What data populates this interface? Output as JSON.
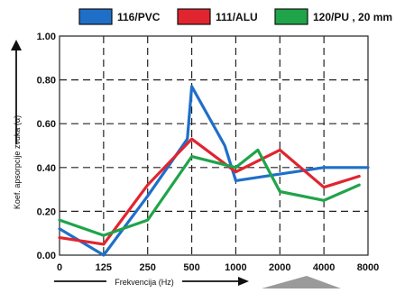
{
  "chart_data": {
    "type": "line",
    "title": "",
    "xlabel": "Frekvencija (Hz)",
    "ylabel": "Koef. apsorpcije zvuka (α)",
    "categories": [
      "0",
      "125",
      "250",
      "500",
      "1000",
      "2000",
      "4000",
      "8000"
    ],
    "ylim": [
      0.0,
      1.0
    ],
    "yticks": [
      "0.00",
      "0.20",
      "0.40",
      "0.60",
      "0.80",
      "1.00"
    ],
    "grid": true,
    "legend_position": "top",
    "series": [
      {
        "name": "116/PVC",
        "color": "#1f6fc8",
        "points": [
          [
            0,
            0.12
          ],
          [
            1,
            0.0
          ],
          [
            2,
            0.27
          ],
          [
            2.9,
            0.53
          ],
          [
            3,
            0.77
          ],
          [
            3.75,
            0.5
          ],
          [
            4,
            0.34
          ],
          [
            5,
            0.37
          ],
          [
            6,
            0.4
          ],
          [
            7,
            0.4
          ]
        ]
      },
      {
        "name": "111/ALU",
        "color": "#e0252f",
        "points": [
          [
            0,
            0.08
          ],
          [
            1,
            0.05
          ],
          [
            2,
            0.32
          ],
          [
            3,
            0.53
          ],
          [
            4,
            0.38
          ],
          [
            5,
            0.48
          ],
          [
            6,
            0.31
          ],
          [
            6.8,
            0.36
          ]
        ]
      },
      {
        "name": "120/PU , 20 mm",
        "color": "#1fa44a",
        "points": [
          [
            0,
            0.16
          ],
          [
            1,
            0.09
          ],
          [
            2,
            0.16
          ],
          [
            3,
            0.45
          ],
          [
            4,
            0.4
          ],
          [
            4.5,
            0.48
          ],
          [
            5,
            0.29
          ],
          [
            6,
            0.25
          ],
          [
            6.8,
            0.32
          ]
        ]
      }
    ]
  }
}
